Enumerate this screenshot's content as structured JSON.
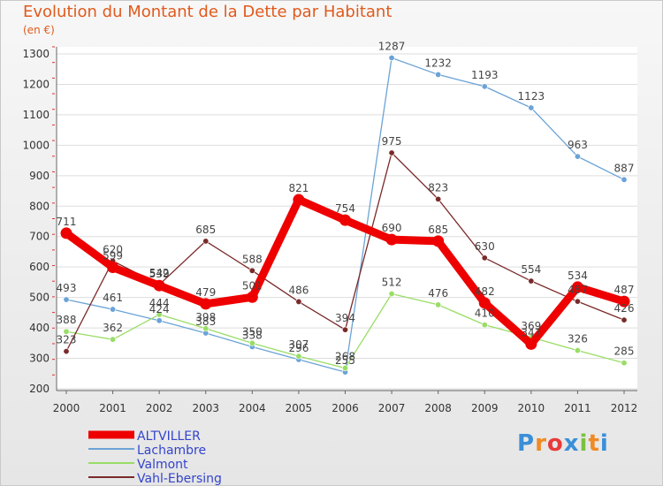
{
  "title": "Evolution du Montant de la Dette par Habitant",
  "unit": "(en €)",
  "logo_text": "Proxiti",
  "chart_data": {
    "type": "line",
    "title": "Evolution du Montant de la Dette par Habitant",
    "subtitle": "(en €)",
    "xlabel": "",
    "ylabel": "",
    "x": [
      "2000",
      "2001",
      "2002",
      "2003",
      "2004",
      "2005",
      "2006",
      "2007",
      "2008",
      "2009",
      "2010",
      "2011",
      "2012"
    ],
    "ylim": [
      200,
      1300
    ],
    "yticks": [
      200,
      300,
      400,
      500,
      600,
      700,
      800,
      900,
      1000,
      1100,
      1200,
      1300
    ],
    "grid": "horizontal",
    "legend_position": "bottom-left",
    "series": [
      {
        "name": "ALTVILLER",
        "color": "#ee0000",
        "values": [
          711,
          599,
          539,
          479,
          501,
          821,
          754,
          690,
          685,
          482,
          347,
          534,
          487
        ]
      },
      {
        "name": "Lachambre",
        "color": "#6ba3d6",
        "values": [
          493,
          461,
          424,
          383,
          338,
          296,
          255,
          1287,
          1232,
          1193,
          1123,
          963,
          887
        ]
      },
      {
        "name": "Valmont",
        "color": "#99dd66",
        "values": [
          388,
          362,
          444,
          398,
          350,
          307,
          268,
          512,
          476,
          410,
          369,
          326,
          285
        ]
      },
      {
        "name": "Vahl-Ebersing",
        "color": "#7a2a2a",
        "values": [
          323,
          620,
          542,
          685,
          588,
          486,
          394,
          975,
          823,
          630,
          554,
          487,
          426
        ]
      }
    ],
    "data_labels": {
      "ALTVILLER": [
        "711",
        "599",
        "539",
        "479",
        "501",
        "821",
        "754",
        "690",
        "685",
        "482",
        "347",
        "534",
        "487"
      ],
      "Lachambre": [
        "493",
        "461",
        "424",
        "383",
        "338",
        "296",
        "255",
        "1287",
        "1232",
        "1193",
        "1123",
        "963",
        "887"
      ],
      "Valmont": [
        "388",
        "362",
        "444",
        "398",
        "350",
        "307",
        "268",
        "512",
        "476",
        "410",
        "369",
        "326",
        "285"
      ],
      "Vahl-Ebersing": [
        "323",
        "620",
        "542",
        "685",
        "588",
        "486",
        "394",
        "975",
        "823",
        "630",
        "554",
        "487",
        "426"
      ]
    }
  }
}
